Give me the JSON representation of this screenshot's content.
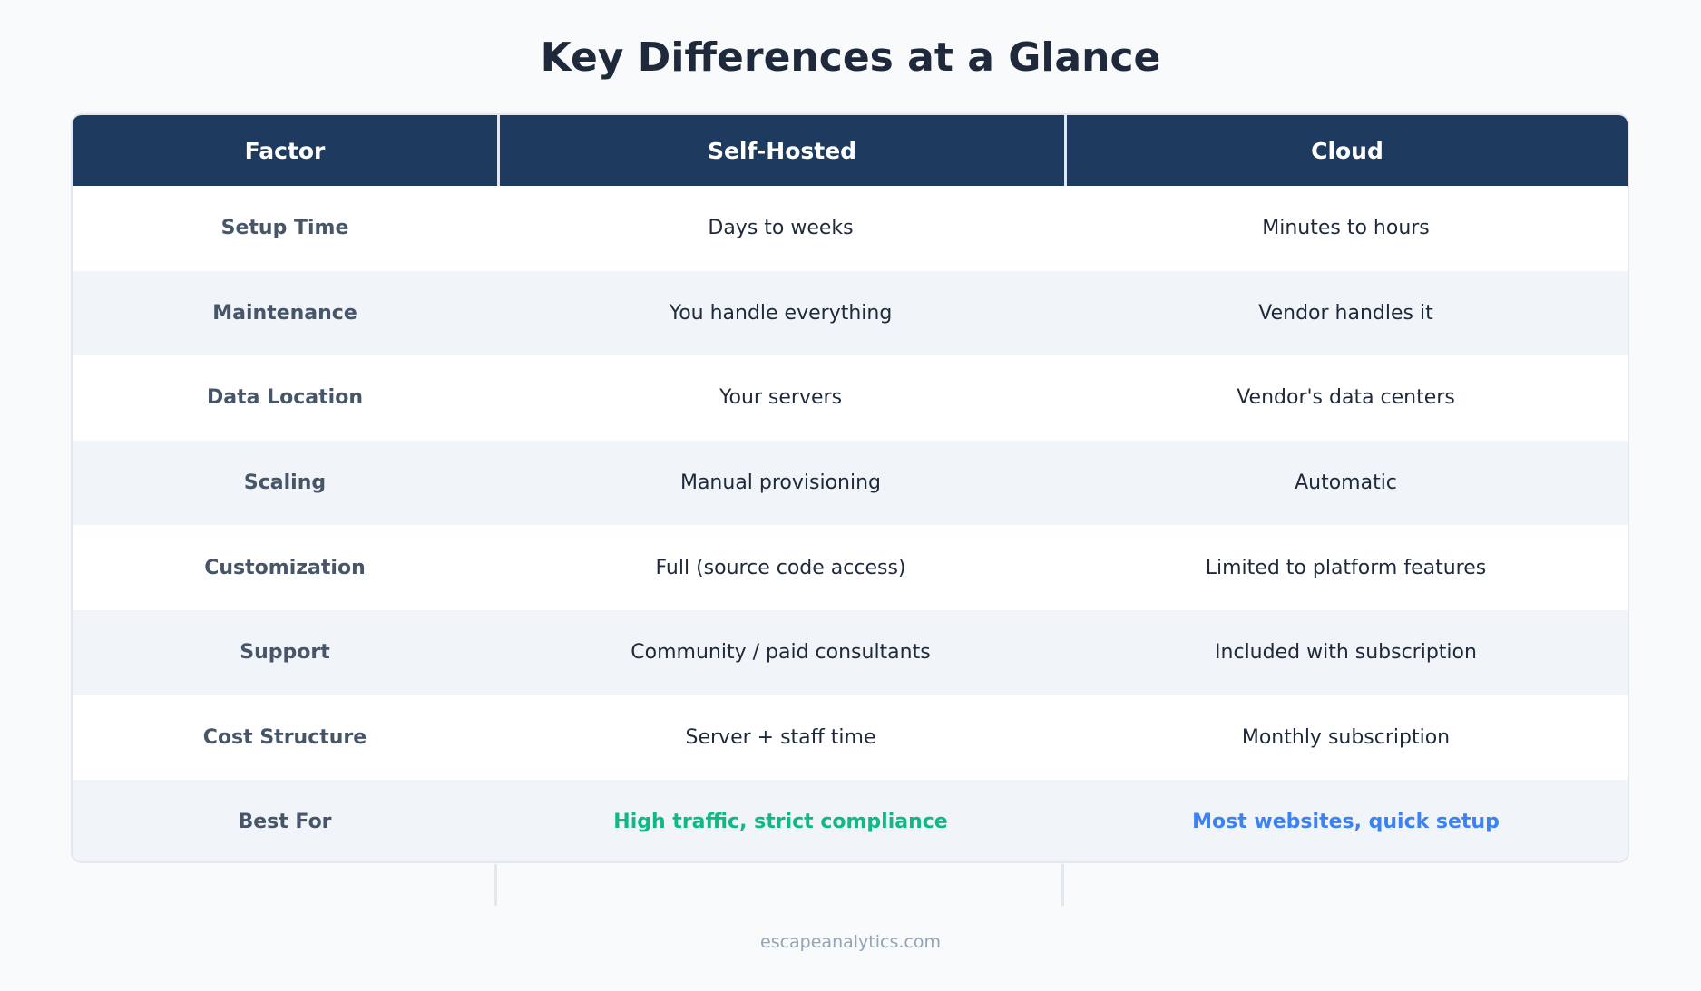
{
  "title": "Key Differences at a Glance",
  "chart_data": {
    "type": "table",
    "columns": [
      "Factor",
      "Self-Hosted",
      "Cloud"
    ],
    "rows": [
      {
        "factor": "Setup Time",
        "self_hosted": "Days to weeks",
        "cloud": "Minutes to hours"
      },
      {
        "factor": "Maintenance",
        "self_hosted": "You handle everything",
        "cloud": "Vendor handles it"
      },
      {
        "factor": "Data Location",
        "self_hosted": "Your servers",
        "cloud": "Vendor's data centers"
      },
      {
        "factor": "Scaling",
        "self_hosted": "Manual provisioning",
        "cloud": "Automatic"
      },
      {
        "factor": "Customization",
        "self_hosted": "Full (source code access)",
        "cloud": "Limited to platform features"
      },
      {
        "factor": "Support",
        "self_hosted": "Community / paid consultants",
        "cloud": "Included with subscription"
      },
      {
        "factor": "Cost Structure",
        "self_hosted": "Server + staff time",
        "cloud": "Monthly subscription"
      },
      {
        "factor": "Best For",
        "self_hosted": "High traffic, strict compliance",
        "cloud": "Most websites, quick setup"
      }
    ]
  },
  "colors": {
    "header_bg": "#1e3a5f",
    "best_self_hosted": "#10b981",
    "best_cloud": "#3b82f6"
  },
  "footer": "escapeanalytics.com"
}
